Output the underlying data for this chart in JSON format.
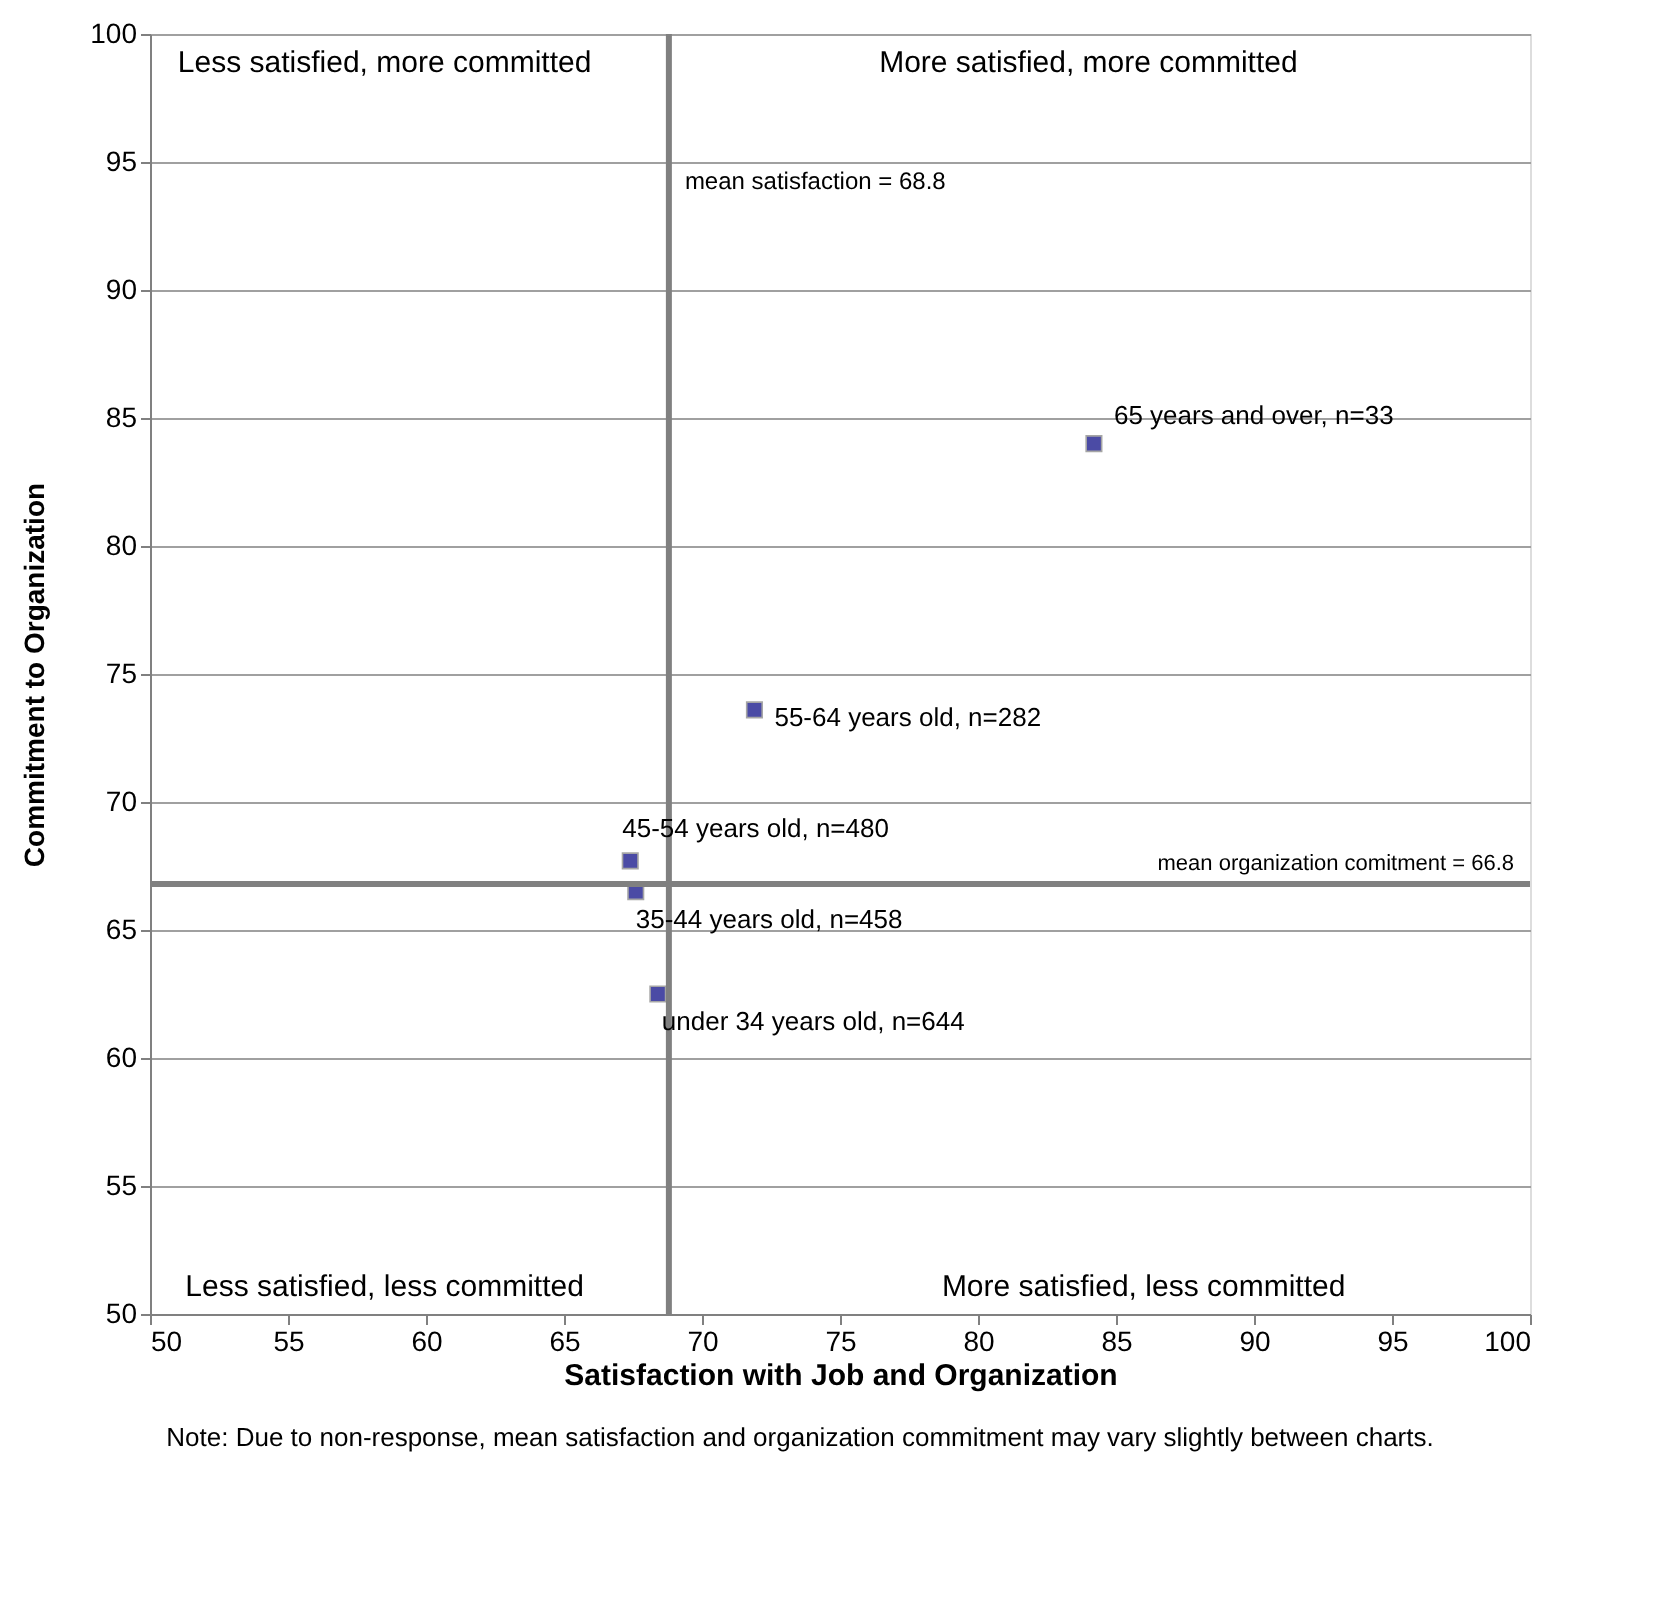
{
  "chart_data": {
    "type": "scatter",
    "xlabel": "Satisfaction with Job and Organization",
    "ylabel": "Commitment to Organization",
    "x": [
      84.2,
      71.9,
      67.4,
      67.6,
      68.4
    ],
    "series": [
      {
        "color": "#000080",
        "values": [
          84.0,
          73.6,
          67.7,
          66.5,
          62.5
        ]
      }
    ],
    "xlim": [
      50,
      100
    ],
    "xticks": [
      50,
      55,
      60,
      65,
      70,
      75,
      80,
      85,
      90,
      95,
      100
    ],
    "ylim": [
      50,
      100
    ],
    "yticks": [
      50,
      55,
      60,
      65,
      70,
      75,
      80,
      85,
      90,
      95,
      100
    ],
    "grid": "y",
    "marker": "square",
    "ref_lines": [
      {
        "axis": "x",
        "value": 68.8,
        "label": "mean satisfaction = 68.8",
        "color": "#808080"
      },
      {
        "axis": "y",
        "value": 66.8,
        "label": "mean organization comitment = 66.8",
        "color": "#808080"
      }
    ],
    "annotations": [
      {
        "text": "65 years and over, n=33",
        "x": 84.2,
        "y": 84.0
      },
      {
        "text": "55-64 years old, n=282",
        "x": 71.9,
        "y": 73.6
      },
      {
        "text": "45-54 years old, n=480",
        "x": 67.4,
        "y": 67.7
      },
      {
        "text": "35-44 years old, n=458",
        "x": 67.6,
        "y": 66.5
      },
      {
        "text": "under 34 years old, n=644",
        "x": 68.4,
        "y": 62.5
      },
      "Less satisfied, more committed",
      "More satisfied, more committed",
      "Less satisfied, less committed",
      "More satisfied, less committed",
      "Note: Due to non-response, mean satisfaction and organization commitment may vary slightly between charts."
    ]
  }
}
